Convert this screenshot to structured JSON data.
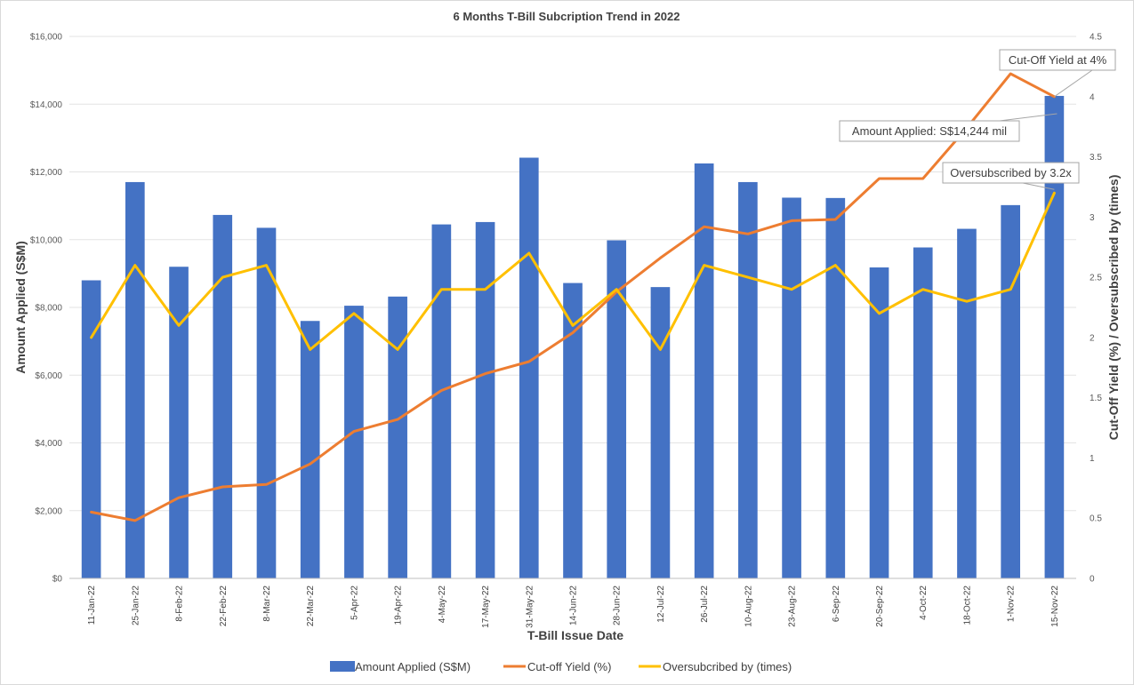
{
  "chart_data": {
    "type": "bar",
    "title": "6 Months T-Bill Subcription Trend in 2022",
    "xlabel": "T-Bill Issue Date",
    "ylabel": "Amount Applied (S$M)",
    "y2label": "Cut-Off Yield (%) / Oversubscribed by (times)",
    "ylim": [
      0,
      16000
    ],
    "y2lim": [
      0,
      4.5
    ],
    "yticks": [
      "$0",
      "$2,000",
      "$4,000",
      "$6,000",
      "$8,000",
      "$10,000",
      "$12,000",
      "$14,000",
      "$16,000"
    ],
    "y2ticks": [
      "0",
      "0.5",
      "1",
      "1.5",
      "2",
      "2.5",
      "3",
      "3.5",
      "4",
      "4.5"
    ],
    "grid": true,
    "legend_position": "bottom",
    "categories": [
      "11-Jan-22",
      "25-Jan-22",
      "8-Feb-22",
      "22-Feb-22",
      "8-Mar-22",
      "22-Mar-22",
      "5-Apr-22",
      "19-Apr-22",
      "4-May-22",
      "17-May-22",
      "31-May-22",
      "14-Jun-22",
      "28-Jun-22",
      "12-Jul-22",
      "26-Jul-22",
      "10-Aug-22",
      "23-Aug-22",
      "6-Sep-22",
      "20-Sep-22",
      "4-Oct-22",
      "18-Oct-22",
      "1-Nov-22",
      "15-Nov-22"
    ],
    "series": [
      {
        "name": "Amount Applied (S$M)",
        "type": "bar",
        "axis": "left",
        "color": "#4472C4",
        "values": [
          8800,
          11700,
          9200,
          10730,
          10350,
          7600,
          8050,
          8320,
          10450,
          10520,
          12420,
          8720,
          9980,
          8600,
          12250,
          11700,
          11240,
          11230,
          9180,
          9770,
          10320,
          11020,
          14244
        ]
      },
      {
        "name": "Cut-off Yield (%)",
        "type": "line",
        "axis": "right",
        "color": "#ED7D31",
        "values": [
          0.55,
          0.48,
          0.67,
          0.76,
          0.78,
          0.95,
          1.22,
          1.32,
          1.56,
          1.7,
          1.8,
          2.04,
          2.38,
          2.66,
          2.92,
          2.86,
          2.97,
          2.98,
          3.32,
          3.32,
          3.74,
          4.19,
          4.0
        ]
      },
      {
        "name": "Oversubcribed by (times)",
        "type": "line",
        "axis": "right",
        "color": "#FFC000",
        "values": [
          2.0,
          2.6,
          2.1,
          2.5,
          2.6,
          1.9,
          2.2,
          1.9,
          2.4,
          2.4,
          2.7,
          2.1,
          2.4,
          1.9,
          2.6,
          2.5,
          2.4,
          2.6,
          2.2,
          2.4,
          2.3,
          2.4,
          3.2
        ]
      }
    ],
    "annotations": [
      {
        "text": "Cut-Off Yield at 4%",
        "target_index": 22,
        "target_series": 1
      },
      {
        "text": "Amount Applied: S$14,244 mil",
        "target_index": 22,
        "target_series": 0
      },
      {
        "text": "Oversubscribed by 3.2x",
        "target_index": 22,
        "target_series": 2
      }
    ]
  }
}
